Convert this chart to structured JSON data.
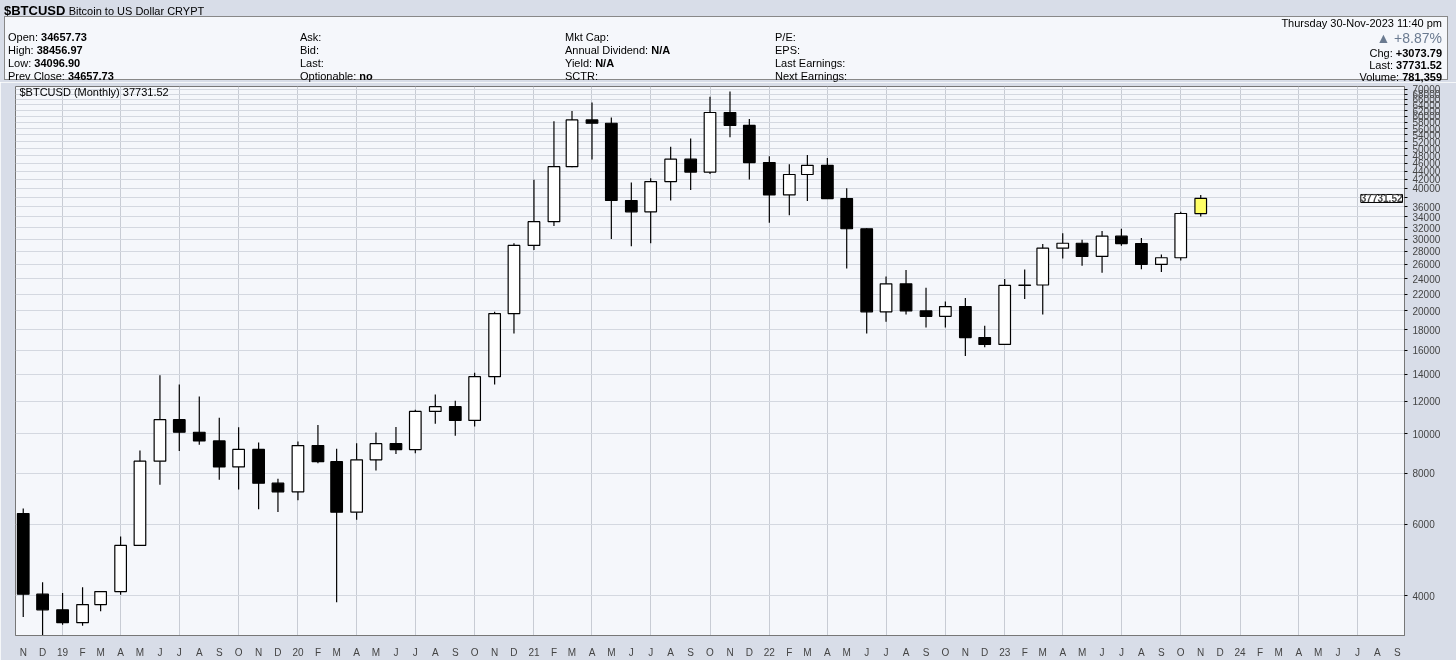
{
  "chart_data": {
    "type": "candlestick",
    "title": "$BTCUSD",
    "subtitle": "Bitcoin to US Dollar CRYPT",
    "x": [
      "2018-11",
      "2018-12",
      "2019-01",
      "2019-02",
      "2019-03",
      "2019-04",
      "2019-05",
      "2019-06",
      "2019-07",
      "2019-08",
      "2019-09",
      "2019-10",
      "2019-11",
      "2019-12",
      "2020-01",
      "2020-02",
      "2020-03",
      "2020-04",
      "2020-05",
      "2020-06",
      "2020-07",
      "2020-08",
      "2020-09",
      "2020-10",
      "2020-11",
      "2020-12",
      "2021-01",
      "2021-02",
      "2021-03",
      "2021-04",
      "2021-05",
      "2021-06",
      "2021-07",
      "2021-08",
      "2021-09",
      "2021-10",
      "2021-11",
      "2021-12",
      "2022-01",
      "2022-02",
      "2022-03",
      "2022-04",
      "2022-05",
      "2022-06",
      "2022-07",
      "2022-08",
      "2022-09",
      "2022-10",
      "2022-11",
      "2022-12",
      "2023-01",
      "2023-02",
      "2023-03",
      "2023-04",
      "2023-05",
      "2023-06",
      "2023-07",
      "2023-08",
      "2023-09",
      "2023-10",
      "2023-11"
    ],
    "ohlc": [
      [
        6370,
        6550,
        3550,
        4040
      ],
      [
        4040,
        4320,
        3150,
        3700
      ],
      [
        3700,
        4070,
        3400,
        3440
      ],
      [
        3440,
        4200,
        3380,
        3810
      ],
      [
        3810,
        4100,
        3670,
        4100
      ],
      [
        4100,
        5600,
        4030,
        5320
      ],
      [
        5320,
        9100,
        5320,
        8560
      ],
      [
        8560,
        13900,
        7500,
        10820
      ],
      [
        10820,
        13200,
        9070,
        10080
      ],
      [
        10080,
        12330,
        9400,
        9600
      ],
      [
        9600,
        10940,
        7710,
        8290
      ],
      [
        8290,
        10370,
        7300,
        9150
      ],
      [
        9150,
        9520,
        6530,
        7560
      ],
      [
        7560,
        7750,
        6430,
        7200
      ],
      [
        7200,
        9570,
        6870,
        9350
      ],
      [
        9350,
        10500,
        8460,
        8540
      ],
      [
        8540,
        9190,
        3860,
        6420
      ],
      [
        6420,
        9470,
        6150,
        8630
      ],
      [
        8630,
        10070,
        8120,
        9450
      ],
      [
        9450,
        10380,
        8910,
        9140
      ],
      [
        9140,
        11450,
        8960,
        11340
      ],
      [
        11340,
        12470,
        10570,
        11650
      ],
      [
        11650,
        12050,
        9880,
        10780
      ],
      [
        10780,
        14100,
        10420,
        13800
      ],
      [
        13800,
        19900,
        13200,
        19700
      ],
      [
        19700,
        29300,
        17600,
        28950
      ],
      [
        28950,
        41950,
        28200,
        33100
      ],
      [
        33100,
        58350,
        32300,
        45150
      ],
      [
        45150,
        61800,
        45000,
        58800
      ],
      [
        58800,
        64900,
        47000,
        57700
      ],
      [
        57700,
        59600,
        30000,
        37300
      ],
      [
        37300,
        41300,
        28800,
        35000
      ],
      [
        35000,
        42300,
        29300,
        41500
      ],
      [
        41500,
        50500,
        37300,
        47100
      ],
      [
        47100,
        52900,
        39600,
        43800
      ],
      [
        43800,
        67000,
        43300,
        61300
      ],
      [
        61300,
        69000,
        53300,
        57000
      ],
      [
        57000,
        59100,
        42000,
        46200
      ],
      [
        46200,
        47900,
        32900,
        38500
      ],
      [
        38500,
        45800,
        34300,
        43200
      ],
      [
        43200,
        48200,
        37200,
        45500
      ],
      [
        45500,
        47400,
        37600,
        37700
      ],
      [
        37700,
        40000,
        25400,
        31800
      ],
      [
        31800,
        31900,
        17600,
        19900
      ],
      [
        19900,
        24300,
        18800,
        23300
      ],
      [
        23300,
        25200,
        19600,
        20000
      ],
      [
        20000,
        22800,
        18200,
        19400
      ],
      [
        19400,
        21100,
        18200,
        20500
      ],
      [
        20500,
        21500,
        15500,
        17200
      ],
      [
        17200,
        18400,
        16300,
        16550
      ],
      [
        16550,
        23950,
        16500,
        23100
      ],
      [
        23100,
        25250,
        21400,
        23150
      ],
      [
        23150,
        29200,
        19600,
        28500
      ],
      [
        28500,
        31000,
        26900,
        29300
      ],
      [
        29300,
        29900,
        25800,
        27200
      ],
      [
        27200,
        31400,
        24800,
        30500
      ],
      [
        30500,
        31800,
        28900,
        29250
      ],
      [
        29250,
        30200,
        25300,
        26000
      ],
      [
        26000,
        27500,
        24900,
        27000
      ],
      [
        27000,
        35000,
        26600,
        34660
      ],
      [
        34657.73,
        38456.97,
        34096.9,
        37731.52
      ]
    ],
    "colors": [
      "#000000",
      "#000000",
      "#000000",
      "#ffffff",
      "#ffffff",
      "#ffffff",
      "#ffffff",
      "#ffffff",
      "#000000",
      "#000000",
      "#000000",
      "#ffffff",
      "#000000",
      "#000000",
      "#ffffff",
      "#000000",
      "#000000",
      "#ffffff",
      "#ffffff",
      "#000000",
      "#ffffff",
      "#ffffff",
      "#000000",
      "#ffffff",
      "#ffffff",
      "#ffffff",
      "#ffffff",
      "#ffffff",
      "#ffffff",
      "#000000",
      "#000000",
      "#000000",
      "#ffffff",
      "#ffffff",
      "#000000",
      "#ffffff",
      "#000000",
      "#000000",
      "#000000",
      "#ffffff",
      "#ffffff",
      "#000000",
      "#000000",
      "#000000",
      "#ffffff",
      "#000000",
      "#000000",
      "#ffffff",
      "#000000",
      "#000000",
      "#ffffff",
      "#ffffff",
      "#ffffff",
      "#ffffff",
      "#000000",
      "#ffffff",
      "#000000",
      "#000000",
      "#ffffff",
      "#ffffff",
      "#ffff66"
    ],
    "log": "y",
    "ylim": [
      3200,
      71000
    ],
    "yticks": [
      4000,
      6000,
      8000,
      10000,
      12000,
      14000,
      16000,
      18000,
      20000,
      22000,
      24000,
      26000,
      28000,
      30000,
      32000,
      34000,
      36000,
      {
        "value": 38000,
        "label": null
      },
      40000,
      42000,
      44000,
      46000,
      48000,
      50000,
      52000,
      54000,
      56000,
      58000,
      60000,
      62000,
      64000,
      66000,
      68000,
      70000
    ],
    "xlim": [
      "2018-10-20",
      "2024-09-12"
    ],
    "xticks": [
      {
        "value": "2018-11",
        "label": "N"
      },
      {
        "value": "2018-12",
        "label": "D"
      },
      {
        "value": "2019-01",
        "label": "19"
      },
      {
        "value": "2019-02",
        "label": "F"
      },
      {
        "value": "2019-03",
        "label": "M"
      },
      {
        "value": "2019-04",
        "label": "A"
      },
      {
        "value": "2019-05",
        "label": "M"
      },
      {
        "value": "2019-06",
        "label": "J"
      },
      {
        "value": "2019-07",
        "label": "J"
      },
      {
        "value": "2019-08",
        "label": "A"
      },
      {
        "value": "2019-09",
        "label": "S"
      },
      {
        "value": "2019-10",
        "label": "O"
      },
      {
        "value": "2019-11",
        "label": "N"
      },
      {
        "value": "2019-12",
        "label": "D"
      },
      {
        "value": "2020-01",
        "label": "20"
      },
      {
        "value": "2020-02",
        "label": "F"
      },
      {
        "value": "2020-03",
        "label": "M"
      },
      {
        "value": "2020-04",
        "label": "A"
      },
      {
        "value": "2020-05",
        "label": "M"
      },
      {
        "value": "2020-06",
        "label": "J"
      },
      {
        "value": "2020-07",
        "label": "J"
      },
      {
        "value": "2020-08",
        "label": "A"
      },
      {
        "value": "2020-09",
        "label": "S"
      },
      {
        "value": "2020-10",
        "label": "O"
      },
      {
        "value": "2020-11",
        "label": "N"
      },
      {
        "value": "2020-12",
        "label": "D"
      },
      {
        "value": "2021-01",
        "label": "21"
      },
      {
        "value": "2021-02",
        "label": "F"
      },
      {
        "value": "2021-03",
        "label": "M"
      },
      {
        "value": "2021-04",
        "label": "A"
      },
      {
        "value": "2021-05",
        "label": "M"
      },
      {
        "value": "2021-06",
        "label": "J"
      },
      {
        "value": "2021-07",
        "label": "J"
      },
      {
        "value": "2021-08",
        "label": "A"
      },
      {
        "value": "2021-09",
        "label": "S"
      },
      {
        "value": "2021-10",
        "label": "O"
      },
      {
        "value": "2021-11",
        "label": "N"
      },
      {
        "value": "2021-12",
        "label": "D"
      },
      {
        "value": "2022-01",
        "label": "22"
      },
      {
        "value": "2022-02",
        "label": "F"
      },
      {
        "value": "2022-03",
        "label": "M"
      },
      {
        "value": "2022-04",
        "label": "A"
      },
      {
        "value": "2022-05",
        "label": "M"
      },
      {
        "value": "2022-06",
        "label": "J"
      },
      {
        "value": "2022-07",
        "label": "J"
      },
      {
        "value": "2022-08",
        "label": "A"
      },
      {
        "value": "2022-09",
        "label": "S"
      },
      {
        "value": "2022-10",
        "label": "O"
      },
      {
        "value": "2022-11",
        "label": "N"
      },
      {
        "value": "2022-12",
        "label": "D"
      },
      {
        "value": "2023-01",
        "label": "23"
      },
      {
        "value": "2023-02",
        "label": "F"
      },
      {
        "value": "2023-03",
        "label": "M"
      },
      {
        "value": "2023-04",
        "label": "A"
      },
      {
        "value": "2023-05",
        "label": "M"
      },
      {
        "value": "2023-06",
        "label": "J"
      },
      {
        "value": "2023-07",
        "label": "J"
      },
      {
        "value": "2023-08",
        "label": "A"
      },
      {
        "value": "2023-09",
        "label": "S"
      },
      {
        "value": "2023-10",
        "label": "O"
      },
      {
        "value": "2023-11",
        "label": "N"
      },
      {
        "value": "2023-12",
        "label": "D"
      },
      {
        "value": "2024-01",
        "label": "24"
      },
      {
        "value": "2024-02",
        "label": "F"
      },
      {
        "value": "2024-03",
        "label": "M"
      },
      {
        "value": "2024-04",
        "label": "A"
      },
      {
        "value": "2024-05",
        "label": "M"
      },
      {
        "value": "2024-06",
        "label": "J"
      },
      {
        "value": "2024-07",
        "label": "J"
      },
      {
        "value": "2024-08",
        "label": "A"
      },
      {
        "value": "2024-09",
        "label": "S"
      }
    ],
    "grid": true,
    "annotations": [
      "Open: 34657.73",
      "High: 38456.97",
      "Low: 34096.90",
      "Prev Close: 34657.73",
      "Ask:",
      "Bid:",
      "Last:",
      "Optionable: no",
      "Mkt Cap:",
      "Annual Dividend: N/A",
      "Yield: N/A",
      "SCTR:",
      "P/E:",
      "EPS:",
      "Last Earnings:",
      "Next Earnings:",
      "Thursday 30-Nov-2023 11:40 pm",
      "▲ +8.87%",
      "Chg: +3073.79",
      "Last: 37731.52",
      "Volume: 781,359",
      "$BTCUSD (Monthly) 37731.52",
      "37731.52"
    ]
  }
}
